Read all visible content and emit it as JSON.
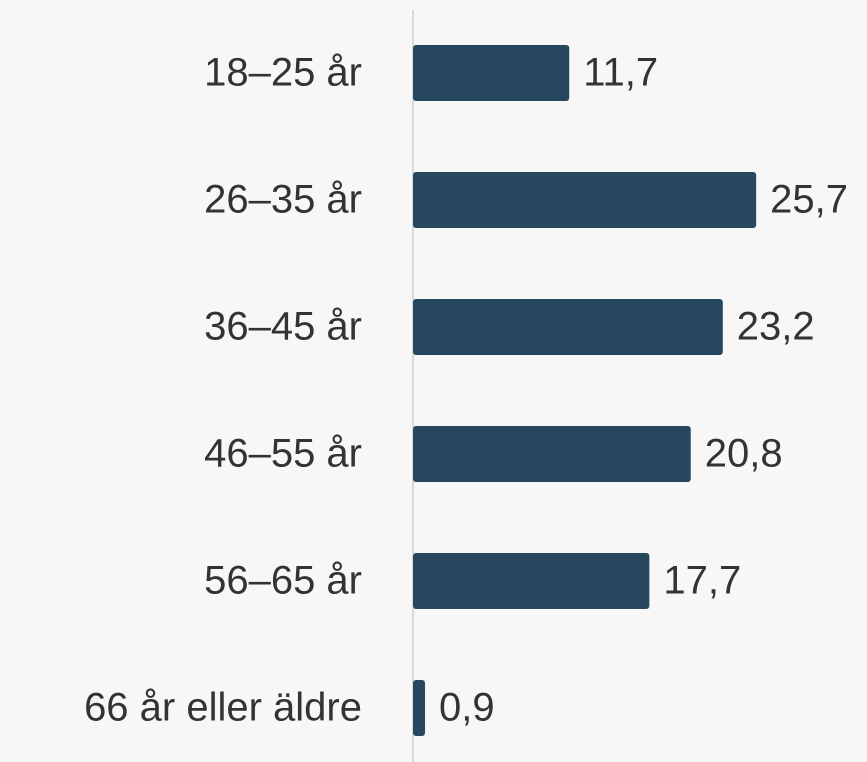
{
  "chart_data": {
    "type": "bar",
    "orientation": "horizontal",
    "categories": [
      "18–25 år",
      "26–35 år",
      "36–45 år",
      "46–55 år",
      "56–65 år",
      "66 år eller äldre"
    ],
    "values": [
      11.7,
      25.7,
      23.2,
      20.8,
      17.7,
      0.9
    ],
    "value_labels": [
      "11,7",
      "25,7",
      "23,2",
      "20,8",
      "17,7",
      "0,9"
    ],
    "color": "#27475f",
    "xlim": [
      0,
      34
    ]
  }
}
